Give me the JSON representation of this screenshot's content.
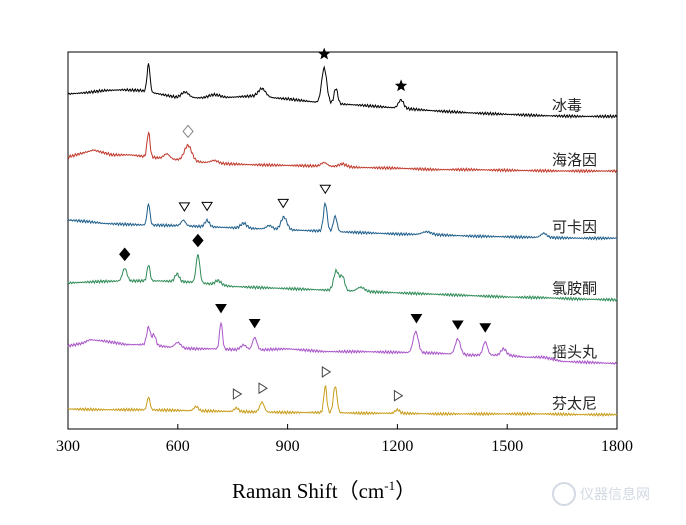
{
  "chart_data": {
    "type": "line",
    "xlabel": "Raman Shift（cm",
    "xlabel_sup": "-1",
    "xlabel_close": "）",
    "xlim": [
      300,
      1800
    ],
    "xticks": [
      300,
      600,
      900,
      1200,
      1500,
      1800
    ],
    "yticks": false,
    "grid": false,
    "legend": "labels at right end of each trace",
    "watermark": "仪器信息网",
    "series": [
      {
        "name": "冰毒",
        "color": "#000000",
        "offset": 0,
        "base": [
          [
            300,
            0.0
          ],
          [
            350,
            0.2
          ],
          [
            400,
            0.5
          ],
          [
            450,
            0.6
          ],
          [
            500,
            0.5
          ],
          [
            600,
            -0.5
          ],
          [
            700,
            -0.6
          ],
          [
            800,
            -0.3
          ],
          [
            900,
            -0.7
          ],
          [
            1000,
            -1.3
          ],
          [
            1100,
            -1.6
          ],
          [
            1200,
            -2.0
          ],
          [
            1300,
            -2.4
          ],
          [
            1400,
            -2.7
          ],
          [
            1500,
            -2.9
          ],
          [
            1600,
            -3.1
          ],
          [
            1700,
            -3.2
          ],
          [
            1800,
            -3.2
          ]
        ],
        "peaks": [
          [
            520,
            4.0,
            4
          ],
          [
            620,
            0.8,
            10
          ],
          [
            700,
            0.5,
            15
          ],
          [
            830,
            1.2,
            10
          ],
          [
            1000,
            5.0,
            7
          ],
          [
            1032,
            2.2,
            5
          ],
          [
            1210,
            1.2,
            7
          ]
        ],
        "markers": [
          {
            "x": 1000,
            "type": "star-filled"
          },
          {
            "x": 1210,
            "type": "star-filled"
          }
        ]
      },
      {
        "name": "海洛因",
        "color": "#c0392b",
        "offset": 1,
        "base": [
          [
            300,
            0.0
          ],
          [
            350,
            0.7
          ],
          [
            370,
            1.0
          ],
          [
            420,
            0.3
          ],
          [
            470,
            0.3
          ],
          [
            560,
            -0.2
          ],
          [
            700,
            -0.9
          ],
          [
            800,
            -1.1
          ],
          [
            900,
            -1.2
          ],
          [
            1000,
            -1.3
          ],
          [
            1100,
            -1.5
          ],
          [
            1200,
            -1.6
          ],
          [
            1300,
            -1.8
          ],
          [
            1400,
            -1.8
          ],
          [
            1500,
            -1.9
          ],
          [
            1650,
            -2.0
          ],
          [
            1800,
            -2.0
          ]
        ],
        "peaks": [
          [
            520,
            3.5,
            4
          ],
          [
            570,
            0.7,
            8
          ],
          [
            628,
            2.2,
            10
          ],
          [
            700,
            0.4,
            10
          ],
          [
            1000,
            0.5,
            8
          ],
          [
            1050,
            0.4,
            10
          ]
        ],
        "markers": [
          {
            "x": 628,
            "type": "diamond-open"
          }
        ]
      },
      {
        "name": "可卡因",
        "color": "#1f5f8b",
        "offset": 2,
        "base": [
          [
            300,
            0.0
          ],
          [
            350,
            -0.2
          ],
          [
            400,
            -0.5
          ],
          [
            450,
            -0.6
          ],
          [
            500,
            -0.7
          ],
          [
            600,
            -0.8
          ],
          [
            700,
            -1.0
          ],
          [
            800,
            -1.2
          ],
          [
            900,
            -1.4
          ],
          [
            1000,
            -1.6
          ],
          [
            1100,
            -1.8
          ],
          [
            1200,
            -2.0
          ],
          [
            1300,
            -2.1
          ],
          [
            1400,
            -2.3
          ],
          [
            1500,
            -2.4
          ],
          [
            1600,
            -2.5
          ],
          [
            1700,
            -2.6
          ],
          [
            1800,
            -2.6
          ]
        ],
        "peaks": [
          [
            520,
            3.0,
            4
          ],
          [
            615,
            0.8,
            6
          ],
          [
            680,
            0.9,
            6
          ],
          [
            780,
            0.7,
            8
          ],
          [
            850,
            0.5,
            8
          ],
          [
            890,
            1.8,
            8
          ],
          [
            1003,
            4.0,
            5
          ],
          [
            1030,
            2.2,
            5
          ],
          [
            1280,
            0.4,
            12
          ],
          [
            1600,
            0.6,
            8
          ]
        ],
        "markers": [
          {
            "x": 618,
            "type": "triangle-down-open"
          },
          {
            "x": 680,
            "type": "triangle-down-open"
          },
          {
            "x": 888,
            "type": "triangle-down-open"
          },
          {
            "x": 1003,
            "type": "triangle-down-open"
          }
        ]
      },
      {
        "name": "氯胺酮",
        "color": "#2e8b57",
        "offset": 3,
        "base": [
          [
            300,
            0.0
          ],
          [
            380,
            0.2
          ],
          [
            450,
            0.3
          ],
          [
            550,
            0.3
          ],
          [
            650,
            0.1
          ],
          [
            750,
            -0.5
          ],
          [
            850,
            -0.7
          ],
          [
            950,
            -0.9
          ],
          [
            1100,
            -1.2
          ],
          [
            1200,
            -1.4
          ],
          [
            1300,
            -1.6
          ],
          [
            1400,
            -1.8
          ],
          [
            1500,
            -2.0
          ],
          [
            1600,
            -2.1
          ],
          [
            1700,
            -2.3
          ],
          [
            1800,
            -2.4
          ]
        ],
        "peaks": [
          [
            455,
            1.8,
            6
          ],
          [
            520,
            2.3,
            4
          ],
          [
            598,
            1.1,
            6
          ],
          [
            655,
            4.0,
            5
          ],
          [
            710,
            0.6,
            8
          ],
          [
            1033,
            2.8,
            7
          ],
          [
            1050,
            2.0,
            6
          ],
          [
            1100,
            0.6,
            10
          ]
        ],
        "markers": [
          {
            "x": 455,
            "type": "diamond-filled"
          },
          {
            "x": 655,
            "type": "diamond-filled"
          }
        ]
      },
      {
        "name": "摇头丸",
        "color": "#a855c8",
        "offset": 4,
        "base": [
          [
            300,
            0.0
          ],
          [
            340,
            0.4
          ],
          [
            360,
            0.9
          ],
          [
            400,
            0.7
          ],
          [
            460,
            0.2
          ],
          [
            520,
            0.2
          ],
          [
            600,
            -0.3
          ],
          [
            650,
            -0.4
          ],
          [
            700,
            -0.4
          ],
          [
            800,
            -0.6
          ],
          [
            900,
            -0.4
          ],
          [
            1000,
            -0.8
          ],
          [
            1100,
            -0.8
          ],
          [
            1200,
            -0.9
          ],
          [
            1300,
            -1.0
          ],
          [
            1400,
            -1.3
          ],
          [
            1500,
            -1.3
          ],
          [
            1550,
            -1.6
          ],
          [
            1600,
            -1.6
          ],
          [
            1650,
            -2.2
          ],
          [
            1800,
            -2.5
          ]
        ],
        "peaks": [
          [
            520,
            2.5,
            5
          ],
          [
            535,
            1.5,
            5
          ],
          [
            600,
            0.8,
            8
          ],
          [
            718,
            3.8,
            4
          ],
          [
            780,
            0.7,
            8
          ],
          [
            810,
            1.8,
            6
          ],
          [
            1250,
            3.0,
            7
          ],
          [
            1365,
            2.2,
            7
          ],
          [
            1440,
            1.9,
            6
          ],
          [
            1490,
            0.9,
            7
          ]
        ],
        "markers": [
          {
            "x": 718,
            "type": "triangle-down-filled"
          },
          {
            "x": 810,
            "type": "triangle-down-filled"
          },
          {
            "x": 1252,
            "type": "triangle-down-filled"
          },
          {
            "x": 1365,
            "type": "triangle-down-filled"
          },
          {
            "x": 1440,
            "type": "triangle-down-filled"
          }
        ]
      },
      {
        "name": "芬太尼",
        "color": "#c89d1a",
        "offset": 5,
        "base": [
          [
            300,
            0.0
          ],
          [
            400,
            -0.1
          ],
          [
            500,
            -0.1
          ],
          [
            600,
            -0.2
          ],
          [
            700,
            -0.3
          ],
          [
            800,
            -0.4
          ],
          [
            900,
            -0.5
          ],
          [
            1000,
            -0.5
          ],
          [
            1100,
            -0.6
          ],
          [
            1200,
            -0.6
          ],
          [
            1300,
            -0.7
          ],
          [
            1400,
            -0.7
          ],
          [
            1500,
            -0.7
          ],
          [
            1600,
            -0.7
          ],
          [
            1700,
            -0.8
          ],
          [
            1800,
            -0.8
          ]
        ],
        "peaks": [
          [
            520,
            1.8,
            4
          ],
          [
            650,
            0.6,
            6
          ],
          [
            760,
            0.5,
            6
          ],
          [
            830,
            1.4,
            6
          ],
          [
            1003,
            3.8,
            4
          ],
          [
            1030,
            3.8,
            5
          ],
          [
            1200,
            0.5,
            6
          ]
        ],
        "markers": [
          {
            "x": 760,
            "type": "triangle-right-open"
          },
          {
            "x": 830,
            "type": "triangle-right-open"
          },
          {
            "x": 1003,
            "type": "triangle-right-open"
          },
          {
            "x": 1200,
            "type": "triangle-right-open"
          }
        ]
      }
    ]
  }
}
